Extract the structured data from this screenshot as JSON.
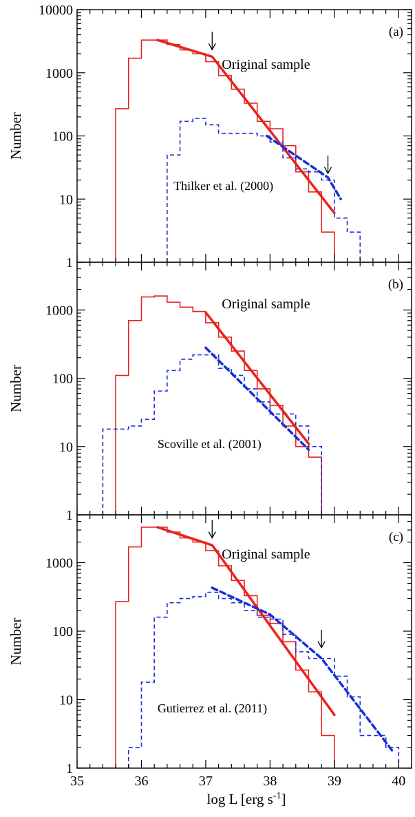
{
  "chart_data": [
    {
      "type": "line",
      "panel_label": "(a)",
      "ylabel": "Number",
      "yscale": "log",
      "ylim": [
        1,
        10000
      ],
      "xlim": [
        35,
        40.2
      ],
      "yticks": [
        1,
        10,
        100,
        1000,
        10000
      ],
      "ytick_labels": [
        "1",
        "10",
        "100",
        "1000",
        "10000"
      ],
      "series": [
        {
          "name": "Original sample",
          "style": "solid",
          "color": "#e8221e",
          "edges": [
            35.6,
            35.8,
            36.0,
            36.2,
            36.4,
            36.6,
            36.8,
            37.0,
            37.2,
            37.4,
            37.6,
            37.8,
            38.0,
            38.2,
            38.4,
            38.6,
            38.8,
            39.0
          ],
          "counts": [
            270,
            1700,
            3300,
            3300,
            2800,
            2300,
            2000,
            1500,
            900,
            550,
            330,
            170,
            130,
            70,
            27,
            13,
            3
          ]
        },
        {
          "name": "Thilker et al. (2000)",
          "style": "dashed",
          "color": "#1a2fd6",
          "edges": [
            36.4,
            36.6,
            36.8,
            37.0,
            37.2,
            37.4,
            37.6,
            37.8,
            38.0,
            38.2,
            38.4,
            38.6,
            38.8,
            39.0,
            39.2,
            39.4
          ],
          "counts": [
            50,
            170,
            190,
            150,
            110,
            110,
            110,
            100,
            80,
            45,
            30,
            27,
            20,
            5,
            3
          ]
        }
      ],
      "fits": [
        {
          "series": "Original sample",
          "color": "#e8221e",
          "width": 3.5,
          "dash": "",
          "x": [
            36.25,
            37.1,
            39.0
          ],
          "y": [
            3300,
            1800,
            6
          ]
        },
        {
          "series": "Thilker et al. (2000)",
          "color": "#1a2fd6",
          "width": 3.5,
          "dash": "8,5",
          "x": [
            37.95,
            38.9,
            39.1
          ],
          "y": [
            100,
            22,
            10
          ]
        }
      ],
      "arrows": [
        {
          "x": 37.1,
          "y": 2000
        },
        {
          "x": 38.9,
          "y": 22
        }
      ],
      "annotations": [
        {
          "text": "Original sample",
          "x": 37.25,
          "y": 1150,
          "size": "annot"
        },
        {
          "text": "Thilker et al. (2000)",
          "x": 36.5,
          "y": 14,
          "size": "annot-sm"
        }
      ]
    },
    {
      "type": "line",
      "panel_label": "(b)",
      "ylabel": "Number",
      "yscale": "log",
      "ylim": [
        1,
        5000
      ],
      "xlim": [
        35,
        40.2
      ],
      "yticks": [
        1,
        10,
        100,
        1000
      ],
      "ytick_labels": [
        "1",
        "10",
        "100",
        "1000"
      ],
      "series": [
        {
          "name": "Original sample",
          "style": "solid",
          "color": "#e8221e",
          "edges": [
            35.6,
            35.8,
            36.0,
            36.2,
            36.4,
            36.6,
            36.8,
            37.0,
            37.2,
            37.4,
            37.6,
            37.8,
            38.0,
            38.2,
            38.4,
            38.6,
            38.8
          ],
          "counts": [
            110,
            700,
            1550,
            1600,
            1300,
            1100,
            950,
            650,
            400,
            250,
            130,
            70,
            40,
            20,
            10,
            7
          ]
        },
        {
          "name": "Scoville et al. (2001)",
          "style": "dashed",
          "color": "#1a2fd6",
          "edges": [
            35.4,
            35.6,
            35.8,
            36.0,
            36.2,
            36.4,
            36.6,
            36.8,
            37.0,
            37.2,
            37.4,
            37.6,
            37.8,
            38.0,
            38.2,
            38.4,
            38.6,
            38.8
          ],
          "counts": [
            18,
            18,
            20,
            25,
            65,
            130,
            190,
            220,
            220,
            140,
            110,
            70,
            45,
            30,
            30,
            20,
            10
          ]
        }
      ],
      "fits": [
        {
          "series": "Original sample",
          "color": "#e8221e",
          "width": 3.5,
          "dash": "",
          "x": [
            37.0,
            38.6
          ],
          "y": [
            920,
            11
          ]
        },
        {
          "series": "Scoville et al. (2001)",
          "color": "#1a2fd6",
          "width": 3.5,
          "dash": "8,5",
          "x": [
            37.0,
            38.6
          ],
          "y": [
            280,
            9
          ]
        }
      ],
      "arrows": [],
      "annotations": [
        {
          "text": "Original sample",
          "x": 37.25,
          "y": 1050,
          "size": "annot"
        },
        {
          "text": "Scoville et al. (2001)",
          "x": 36.25,
          "y": 9.5,
          "size": "annot-sm"
        }
      ]
    },
    {
      "type": "line",
      "panel_label": "(c)",
      "ylabel": "Number",
      "xlabel": "log L [erg s",
      "xlabel_sup": "-1",
      "xlabel_end": "]",
      "yscale": "log",
      "ylim": [
        1,
        5000
      ],
      "xlim": [
        35,
        40.2
      ],
      "yticks": [
        1,
        10,
        100,
        1000
      ],
      "ytick_labels": [
        "1",
        "10",
        "100",
        "1000"
      ],
      "xticks": [
        35,
        36,
        37,
        38,
        39,
        40
      ],
      "xtick_labels": [
        "35",
        "36",
        "37",
        "38",
        "39",
        "40"
      ],
      "series": [
        {
          "name": "Original sample",
          "style": "solid",
          "color": "#e8221e",
          "edges": [
            35.0,
            35.6,
            35.8,
            36.0,
            36.2,
            36.4,
            36.6,
            36.8,
            37.0,
            37.2,
            37.4,
            37.6,
            37.8,
            38.0,
            38.2,
            38.4,
            38.6,
            38.8,
            39.0
          ],
          "counts": [
            1,
            270,
            1700,
            3300,
            3300,
            2800,
            2300,
            2000,
            1500,
            900,
            550,
            330,
            170,
            130,
            70,
            27,
            13,
            3
          ]
        },
        {
          "name": "Gutierrez et al. (2011)",
          "style": "dashed",
          "color": "#1a2fd6",
          "edges": [
            35.8,
            36.0,
            36.2,
            36.4,
            36.6,
            36.8,
            37.0,
            37.2,
            37.4,
            37.6,
            37.8,
            38.0,
            38.2,
            38.4,
            38.6,
            38.8,
            39.0,
            39.2,
            39.4,
            39.6,
            39.8,
            40.0
          ],
          "counts": [
            2,
            18,
            160,
            260,
            300,
            320,
            370,
            300,
            260,
            200,
            160,
            150,
            90,
            50,
            40,
            40,
            22,
            11,
            3,
            3,
            2
          ]
        }
      ],
      "fits": [
        {
          "series": "Original sample",
          "color": "#e8221e",
          "width": 3.5,
          "dash": "",
          "x": [
            36.25,
            37.1,
            39.0
          ],
          "y": [
            3300,
            1800,
            6
          ]
        },
        {
          "series": "Gutierrez et al. (2011)",
          "color": "#1a2fd6",
          "width": 3.5,
          "dash": "8,5",
          "x": [
            37.1,
            38.0,
            38.8,
            39.9
          ],
          "y": [
            430,
            175,
            40,
            1.8
          ]
        }
      ],
      "arrows": [
        {
          "x": 37.1,
          "y": 2000
        },
        {
          "x": 38.8,
          "y": 50
        }
      ],
      "annotations": [
        {
          "text": "Original sample",
          "x": 37.25,
          "y": 1150,
          "size": "annot"
        },
        {
          "text": "Gutierrez et al. (2011)",
          "x": 36.25,
          "y": 6.5,
          "size": "annot-sm"
        }
      ]
    }
  ]
}
